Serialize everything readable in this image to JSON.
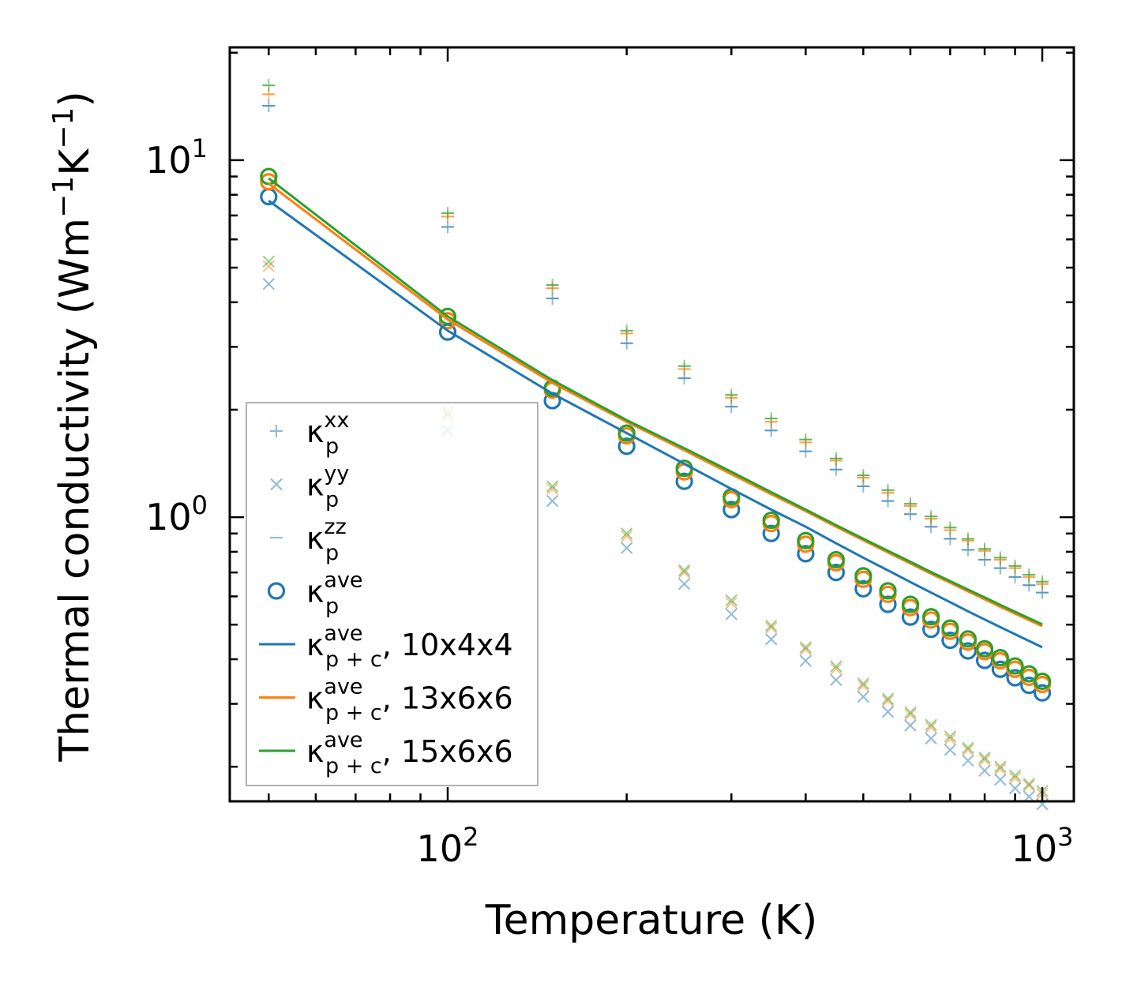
{
  "chart_data": {
    "type": "scatter",
    "xscale": "log",
    "yscale": "log",
    "xlim": [
      43,
      1130
    ],
    "ylim": [
      0.16,
      20.7
    ],
    "xlabel": "Temperature (K)",
    "ylabel_main": "Thermal conductivity (Wm",
    "ylabel_sup1": "−1",
    "ylabel_mid": "K",
    "ylabel_sup2": "−1",
    "ylabel_end": ")",
    "x_ticks": [
      {
        "value": 100,
        "base": "10",
        "exp": "2"
      },
      {
        "value": 1000,
        "base": "10",
        "exp": "3"
      }
    ],
    "y_ticks": [
      {
        "value": 1,
        "base": "10",
        "exp": "0"
      },
      {
        "value": 10,
        "base": "10",
        "exp": "1"
      }
    ],
    "x": [
      50,
      100,
      150,
      200,
      250,
      300,
      350,
      400,
      450,
      500,
      550,
      600,
      650,
      700,
      750,
      800,
      850,
      900,
      950,
      1000
    ],
    "colors": {
      "c10": "#1f77b4",
      "c13": "#ff7f0e",
      "c15": "#2ca02c"
    },
    "series": [
      {
        "name": "kxx_10",
        "kind": "plus",
        "color": "#1f77b4",
        "values": [
          14.2,
          6.5,
          4.1,
          3.07,
          2.45,
          2.04,
          1.75,
          1.53,
          1.36,
          1.22,
          1.11,
          1.02,
          0.94,
          0.87,
          0.81,
          0.76,
          0.72,
          0.68,
          0.645,
          0.615
        ]
      },
      {
        "name": "kxx_13",
        "kind": "plus",
        "color": "#ff7f0e",
        "values": [
          15.3,
          6.95,
          4.38,
          3.27,
          2.6,
          2.16,
          1.85,
          1.62,
          1.44,
          1.29,
          1.17,
          1.075,
          0.99,
          0.92,
          0.86,
          0.805,
          0.76,
          0.72,
          0.68,
          0.65
        ]
      },
      {
        "name": "kxx_15",
        "kind": "plus",
        "color": "#2ca02c",
        "values": [
          16.2,
          7.1,
          4.47,
          3.33,
          2.65,
          2.2,
          1.89,
          1.65,
          1.46,
          1.31,
          1.19,
          1.09,
          1.005,
          0.935,
          0.87,
          0.815,
          0.77,
          0.73,
          0.69,
          0.66
        ]
      },
      {
        "name": "kyy_10",
        "kind": "cross",
        "color": "#1f77b4",
        "values": [
          4.5,
          1.75,
          1.11,
          0.82,
          0.65,
          0.535,
          0.455,
          0.396,
          0.35,
          0.314,
          0.285,
          0.261,
          0.24,
          0.223,
          0.208,
          0.195,
          0.184,
          0.174,
          0.165,
          0.157
        ]
      },
      {
        "name": "kyy_13",
        "kind": "cross",
        "color": "#ff7f0e",
        "values": [
          5.05,
          1.92,
          1.2,
          0.885,
          0.7,
          0.575,
          0.49,
          0.426,
          0.376,
          0.337,
          0.306,
          0.28,
          0.258,
          0.239,
          0.223,
          0.209,
          0.197,
          0.186,
          0.177,
          0.168
        ]
      },
      {
        "name": "kyy_15",
        "kind": "cross",
        "color": "#2ca02c",
        "values": [
          5.2,
          1.96,
          1.22,
          0.9,
          0.71,
          0.585,
          0.497,
          0.432,
          0.382,
          0.342,
          0.31,
          0.284,
          0.262,
          0.243,
          0.226,
          0.212,
          0.2,
          0.189,
          0.179,
          0.171
        ]
      },
      {
        "name": "kzz_10",
        "kind": "dash",
        "color": "#1f77b4",
        "values": [
          14.2,
          6.5,
          4.1,
          3.07,
          2.45,
          2.04,
          1.75,
          1.53,
          1.36,
          1.22,
          1.11,
          1.02,
          0.94,
          0.87,
          0.81,
          0.76,
          0.72,
          0.68,
          0.645,
          0.615
        ]
      },
      {
        "name": "kzz_13",
        "kind": "dash",
        "color": "#ff7f0e",
        "values": [
          15.3,
          6.95,
          4.38,
          3.27,
          2.6,
          2.16,
          1.85,
          1.62,
          1.44,
          1.29,
          1.17,
          1.075,
          0.99,
          0.92,
          0.86,
          0.805,
          0.76,
          0.72,
          0.68,
          0.65
        ]
      },
      {
        "name": "kzz_15",
        "kind": "dash",
        "color": "#2ca02c",
        "values": [
          16.2,
          7.1,
          4.47,
          3.33,
          2.65,
          2.2,
          1.89,
          1.65,
          1.46,
          1.31,
          1.19,
          1.09,
          1.005,
          0.935,
          0.87,
          0.815,
          0.77,
          0.73,
          0.69,
          0.66
        ]
      },
      {
        "name": "kave_10",
        "kind": "circle",
        "color": "#1f77b4",
        "values": [
          7.9,
          3.3,
          2.12,
          1.58,
          1.26,
          1.05,
          0.9,
          0.79,
          0.7,
          0.63,
          0.57,
          0.525,
          0.485,
          0.452,
          0.422,
          0.397,
          0.375,
          0.355,
          0.338,
          0.322
        ]
      },
      {
        "name": "kave_13",
        "kind": "circle",
        "color": "#ff7f0e",
        "values": [
          8.7,
          3.55,
          2.27,
          1.69,
          1.34,
          1.12,
          0.96,
          0.84,
          0.745,
          0.67,
          0.608,
          0.558,
          0.515,
          0.479,
          0.447,
          0.42,
          0.396,
          0.375,
          0.356,
          0.34
        ]
      },
      {
        "name": "kave_15",
        "kind": "circle",
        "color": "#2ca02c",
        "values": [
          9.0,
          3.65,
          2.3,
          1.72,
          1.37,
          1.14,
          0.98,
          0.86,
          0.76,
          0.685,
          0.622,
          0.57,
          0.526,
          0.489,
          0.456,
          0.428,
          0.404,
          0.383,
          0.364,
          0.347
        ]
      },
      {
        "name": "kpc_10",
        "kind": "line",
        "color": "#1f77b4",
        "values": [
          7.7,
          3.33,
          2.22,
          1.72,
          1.41,
          1.2,
          1.05,
          0.94,
          0.845,
          0.77,
          0.71,
          0.658,
          0.615,
          0.578,
          0.545,
          0.517,
          0.492,
          0.47,
          0.45,
          0.432
        ]
      },
      {
        "name": "kpc_13",
        "kind": "line",
        "color": "#ff7f0e",
        "values": [
          8.6,
          3.58,
          2.38,
          1.85,
          1.54,
          1.32,
          1.16,
          1.04,
          0.94,
          0.862,
          0.797,
          0.742,
          0.695,
          0.655,
          0.62,
          0.589,
          0.561,
          0.537,
          0.515,
          0.495
        ]
      },
      {
        "name": "kpc_15",
        "kind": "line",
        "color": "#2ca02c",
        "values": [
          8.9,
          3.65,
          2.42,
          1.87,
          1.56,
          1.34,
          1.175,
          1.05,
          0.95,
          0.87,
          0.805,
          0.75,
          0.702,
          0.662,
          0.627,
          0.596,
          0.568,
          0.543,
          0.521,
          0.501
        ]
      }
    ],
    "legend": {
      "placement": "lower-left",
      "entries": [
        {
          "kind": "plus",
          "color": "#1f77b4",
          "sym": "κ",
          "sub": "p",
          "sup": "xx",
          "suffix": ""
        },
        {
          "kind": "cross",
          "color": "#1f77b4",
          "sym": "κ",
          "sub": "p",
          "sup": "yy",
          "suffix": ""
        },
        {
          "kind": "dash",
          "color": "#1f77b4",
          "sym": "κ",
          "sub": "p",
          "sup": "zz",
          "suffix": ""
        },
        {
          "kind": "circle",
          "color": "#1f77b4",
          "sym": "κ",
          "sub": "p",
          "sup": "ave",
          "suffix": ""
        },
        {
          "kind": "line",
          "color": "#1f77b4",
          "sym": "κ",
          "sub": "p + c",
          "sup": "ave",
          "suffix": ", 10x4x4"
        },
        {
          "kind": "line",
          "color": "#ff7f0e",
          "sym": "κ",
          "sub": "p + c",
          "sup": "ave",
          "suffix": ", 13x6x6"
        },
        {
          "kind": "line",
          "color": "#2ca02c",
          "sym": "κ",
          "sub": "p + c",
          "sup": "ave",
          "suffix": ", 15x6x6"
        }
      ]
    }
  }
}
